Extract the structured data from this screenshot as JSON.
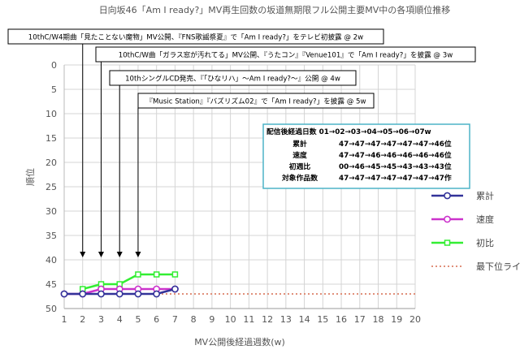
{
  "chart_data": {
    "type": "line",
    "title": "日向坂46「Am I ready?」MV再生回数の坂道無期限フル公開主要MV中の各項順位推移",
    "xlabel": "MV公開後経過週数(w)",
    "ylabel": "順位",
    "xlim": [
      1,
      20
    ],
    "ylim": [
      0,
      50
    ],
    "y_inverted": true,
    "x_ticks": [
      "1",
      "2",
      "3",
      "4",
      "5",
      "6",
      "7",
      "8",
      "9",
      "10",
      "11",
      "12",
      "13",
      "14",
      "15",
      "16",
      "17",
      "18",
      "19",
      "20"
    ],
    "y_ticks": [
      "0",
      "5",
      "10",
      "15",
      "20",
      "25",
      "30",
      "35",
      "40",
      "45",
      "50"
    ],
    "grid": true,
    "legend_position": "right",
    "series": [
      {
        "name": "累計",
        "color": "#333399",
        "marker": "circle",
        "x": [
          1,
          2,
          3,
          4,
          5,
          6,
          7
        ],
        "values": [
          47,
          47,
          47,
          47,
          47,
          47,
          46
        ]
      },
      {
        "name": "速度",
        "color": "#cc33cc",
        "marker": "circle",
        "x": [
          1,
          2,
          3,
          4,
          5,
          6,
          7
        ],
        "values": [
          47,
          47,
          46,
          46,
          46,
          46,
          46
        ]
      },
      {
        "name": "初比",
        "color": "#33ee33",
        "marker": "square",
        "x": [
          2,
          3,
          4,
          5,
          6,
          7
        ],
        "values": [
          46,
          45,
          45,
          43,
          43,
          43
        ]
      },
      {
        "name": "最下位ライン",
        "color": "#e0907a",
        "style": "dotted",
        "x": [
          1,
          20
        ],
        "values": [
          47,
          47
        ]
      }
    ],
    "annotations": [
      {
        "text": "10thC/W4期曲「見たことない魔物」MV公開、『FNS歌謡祭夏』で「Am I ready?」をテレビ初披露 @ 2w",
        "x": 2
      },
      {
        "text": "10thC/W曲「ガラス窓が汚れてる」MV公開、『うたコン』『Venue101』で「Am I ready?」を披露 @ 3w",
        "x": 3
      },
      {
        "text": "10thシングルCD発売、『「ひなリハ」〜Am I ready?〜』公開 @ 4w",
        "x": 4
      },
      {
        "text": "『Music Station』『バズリズム02』で「Am I ready?」を披露 @ 5w",
        "x": 5
      }
    ],
    "table": {
      "header": "配信後経過日数 01→02→03→04→05→06→07w",
      "rows": [
        {
          "label": "累計",
          "value": "47→47→47→47→47→47→46位"
        },
        {
          "label": "速度",
          "value": "47→47→46→46→46→46→46位"
        },
        {
          "label": "初週比",
          "value": "00→46→45→45→43→43→43位"
        },
        {
          "label": "対象作品数",
          "value": "47→47→47→47→47→47→47作"
        }
      ]
    }
  }
}
